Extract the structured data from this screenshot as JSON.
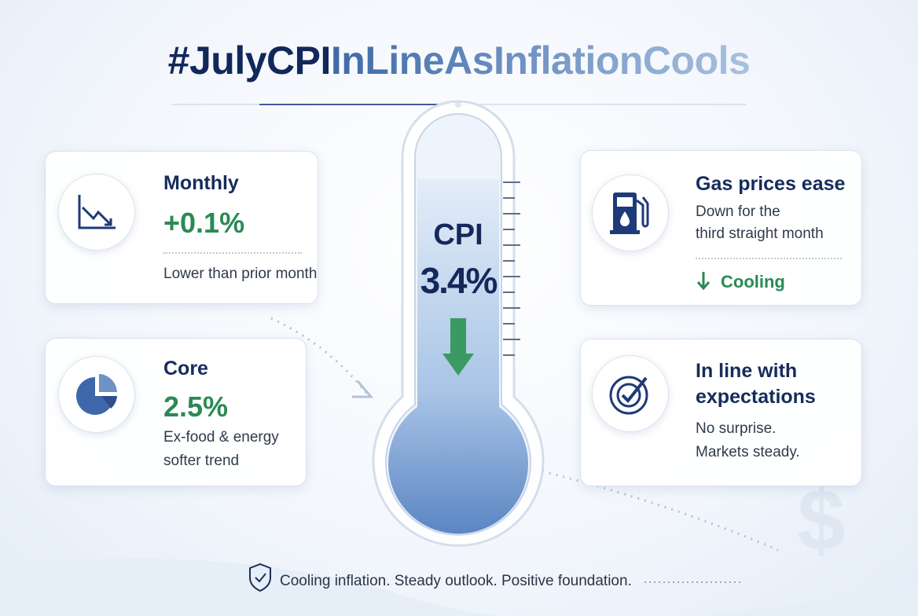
{
  "header": {
    "title_parts": [
      "#JulyCPI",
      "InLineAsInflationCools"
    ]
  },
  "thermometer": {
    "label": "CPI",
    "value": "3.4%"
  },
  "cards": [
    {
      "title": [
        "Monthly"
      ],
      "value": "+0.1%",
      "note": [
        "Lower than prior month"
      ]
    },
    {
      "title": [
        "Core"
      ],
      "value": "2.5%",
      "note": [
        "Ex-food & energy",
        "softer trend"
      ]
    },
    {
      "title": [
        "Gas prices ease"
      ],
      "note": [
        "Down for the",
        "third straight month"
      ],
      "tag": "Cooling"
    },
    {
      "title": [
        "In line with",
        "expectations"
      ],
      "note": [
        "No surprise.",
        "Markets steady."
      ]
    }
  ],
  "footer": {
    "text": "Cooling inflation. Steady outlook. Positive foundation."
  }
}
